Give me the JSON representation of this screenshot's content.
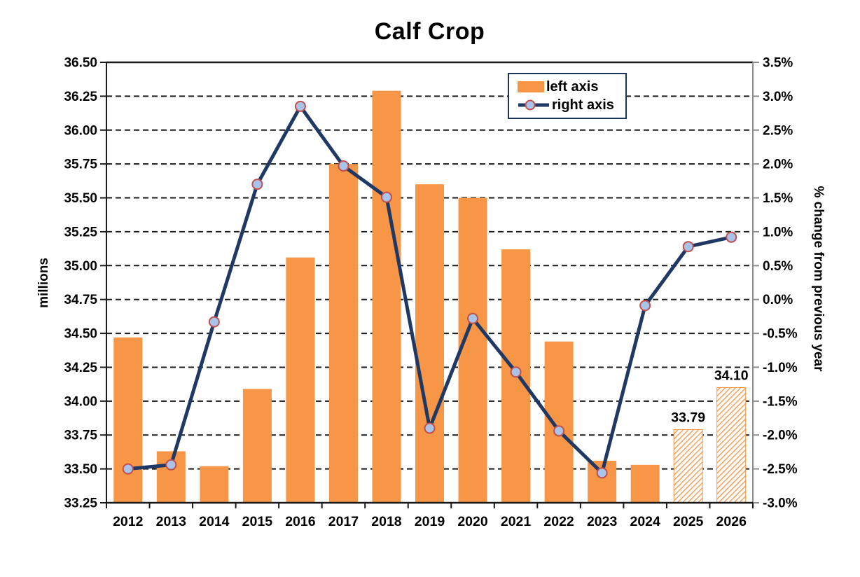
{
  "chart_data": {
    "type": "combo-bar-line",
    "title": "Calf Crop",
    "categories": [
      "2012",
      "2013",
      "2014",
      "2015",
      "2016",
      "2017",
      "2018",
      "2019",
      "2020",
      "2021",
      "2022",
      "2023",
      "2024",
      "2025",
      "2026"
    ],
    "series": [
      {
        "name": "left axis",
        "type": "bar",
        "axis": "left",
        "values": [
          34.47,
          33.63,
          33.52,
          34.09,
          35.06,
          35.75,
          36.29,
          35.6,
          35.5,
          35.12,
          34.44,
          33.56,
          33.53,
          33.79,
          34.1
        ],
        "forecast_categories": [
          "2025",
          "2026"
        ],
        "value_labels": {
          "2025": "33.79",
          "2026": "34.10"
        }
      },
      {
        "name": "right axis",
        "type": "line",
        "axis": "right",
        "values": [
          -2.5,
          -2.44,
          -0.33,
          1.7,
          2.85,
          1.97,
          1.51,
          -1.9,
          -0.28,
          -1.07,
          -1.94,
          -2.56,
          -0.09,
          0.78,
          0.92
        ]
      }
    ],
    "left_axis": {
      "title": "millions",
      "min": 33.25,
      "max": 36.5,
      "step": 0.25,
      "decimals": 2
    },
    "right_axis": {
      "title": "% change from previous year",
      "min": -3.0,
      "max": 3.5,
      "step": 0.5,
      "decimals": 1,
      "suffix": "%"
    },
    "legend": {
      "left_label": "left axis",
      "right_label": "right axis"
    },
    "grid": "dashed-horizontal",
    "legend_position": "top-right-inside",
    "colors": {
      "bar": "#F79646",
      "forecast_bar_bg": "#FFFFFF",
      "line": "#1F3864",
      "marker_fill": "#A9C4E8",
      "marker_edge": "#C0504D",
      "grid": "#1A1A1A",
      "axis": "#1A1A1A",
      "right_axis_line": "#8C8C8C",
      "text": "#000000",
      "legend_border": "#17375E"
    }
  }
}
